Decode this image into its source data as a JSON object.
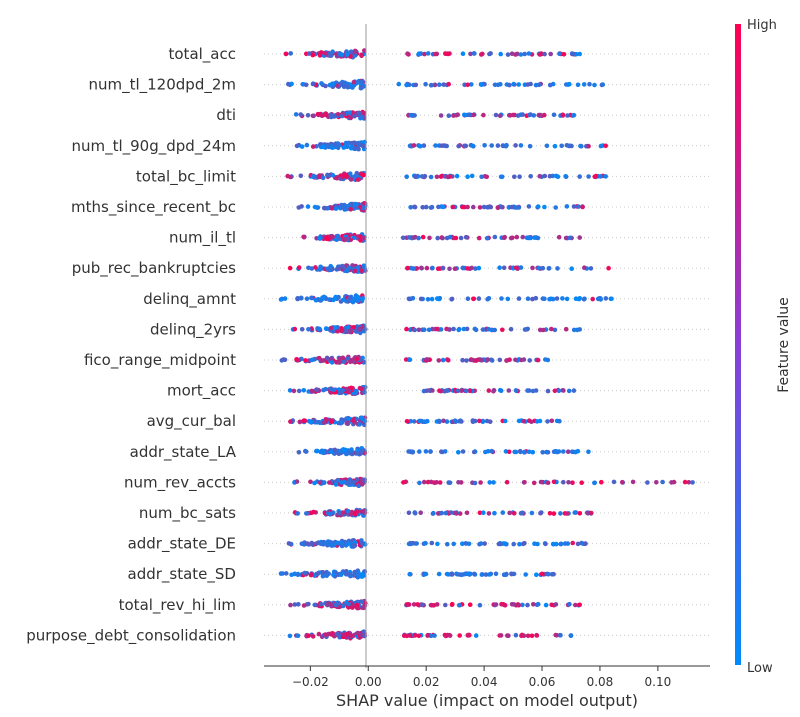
{
  "chart_data": {
    "type": "scatter",
    "subtype": "shap-beeswarm",
    "title": "",
    "xlabel": "SHAP value (impact on model output)",
    "xlim": [
      -0.036,
      0.118
    ],
    "xticks": [
      {
        "value": -0.02,
        "label": "−0.02"
      },
      {
        "value": 0.0,
        "label": "0.00"
      },
      {
        "value": 0.02,
        "label": "0.02"
      },
      {
        "value": 0.04,
        "label": "0.04"
      },
      {
        "value": 0.06,
        "label": "0.06"
      },
      {
        "value": 0.08,
        "label": "0.08"
      },
      {
        "value": 0.1,
        "label": "0.10"
      }
    ],
    "colorbar": {
      "label": "Feature value",
      "high_label": "High",
      "low_label": "Low",
      "high_color": "#ff0052",
      "low_color": "#008bfb"
    },
    "features": [
      {
        "name": "total_acc",
        "left_min": -0.025,
        "left_max": -0.001,
        "right_min": 0.013,
        "right_max": 0.073,
        "mix": 0.55
      },
      {
        "name": "num_tl_120dpd_2m",
        "left_min": -0.024,
        "left_max": -0.001,
        "right_min": 0.01,
        "right_max": 0.081,
        "mix": 0.05
      },
      {
        "name": "dti",
        "left_min": -0.022,
        "left_max": -0.001,
        "right_min": 0.01,
        "right_max": 0.071,
        "mix": 0.6
      },
      {
        "name": "num_tl_90g_dpd_24m",
        "left_min": -0.022,
        "left_max": -0.001,
        "right_min": 0.014,
        "right_max": 0.082,
        "mix": 0.1
      },
      {
        "name": "total_bc_limit",
        "left_min": -0.024,
        "left_max": -0.001,
        "right_min": 0.013,
        "right_max": 0.082,
        "mix": 0.4
      },
      {
        "name": "mths_since_recent_bc",
        "left_min": -0.02,
        "left_max": -0.001,
        "right_min": 0.012,
        "right_max": 0.074,
        "mix": 0.25
      },
      {
        "name": "num_il_tl",
        "left_min": -0.02,
        "left_max": -0.001,
        "right_min": 0.012,
        "right_max": 0.073,
        "mix": 0.5
      },
      {
        "name": "pub_rec_bankruptcies",
        "left_min": -0.023,
        "left_max": -0.001,
        "right_min": 0.013,
        "right_max": 0.083,
        "mix": 0.35
      },
      {
        "name": "delinq_amnt",
        "left_min": -0.026,
        "left_max": -0.001,
        "right_min": 0.014,
        "right_max": 0.084,
        "mix": 0.05
      },
      {
        "name": "delinq_2yrs",
        "left_min": -0.022,
        "left_max": -0.001,
        "right_min": 0.013,
        "right_max": 0.073,
        "mix": 0.35
      },
      {
        "name": "fico_range_midpoint",
        "left_min": -0.028,
        "left_max": -0.001,
        "right_min": 0.013,
        "right_max": 0.062,
        "mix": 0.5
      },
      {
        "name": "mort_acc",
        "left_min": -0.023,
        "left_max": -0.001,
        "right_min": 0.013,
        "right_max": 0.071,
        "mix": 0.45
      },
      {
        "name": "avg_cur_bal",
        "left_min": -0.025,
        "left_max": -0.001,
        "right_min": 0.013,
        "right_max": 0.066,
        "mix": 0.3
      },
      {
        "name": "addr_state_LA",
        "left_min": -0.02,
        "left_max": -0.001,
        "right_min": 0.013,
        "right_max": 0.076,
        "mix": 0.05
      },
      {
        "name": "num_rev_accts",
        "left_min": -0.022,
        "left_max": -0.001,
        "right_min": 0.012,
        "right_max": 0.112,
        "mix": 0.55
      },
      {
        "name": "num_bc_sats",
        "left_min": -0.022,
        "left_max": -0.001,
        "right_min": 0.014,
        "right_max": 0.077,
        "mix": 0.55
      },
      {
        "name": "addr_state_DE",
        "left_min": -0.025,
        "left_max": -0.001,
        "right_min": 0.014,
        "right_max": 0.075,
        "mix": 0.05
      },
      {
        "name": "addr_state_SD",
        "left_min": -0.027,
        "left_max": -0.001,
        "right_min": 0.014,
        "right_max": 0.064,
        "mix": 0.05
      },
      {
        "name": "total_rev_hi_lim",
        "left_min": -0.023,
        "left_max": -0.001,
        "right_min": 0.013,
        "right_max": 0.073,
        "mix": 0.55
      },
      {
        "name": "purpose_debt_consolidation",
        "left_min": -0.023,
        "left_max": -0.001,
        "right_min": 0.011,
        "right_max": 0.07,
        "mix": 0.75
      }
    ]
  }
}
